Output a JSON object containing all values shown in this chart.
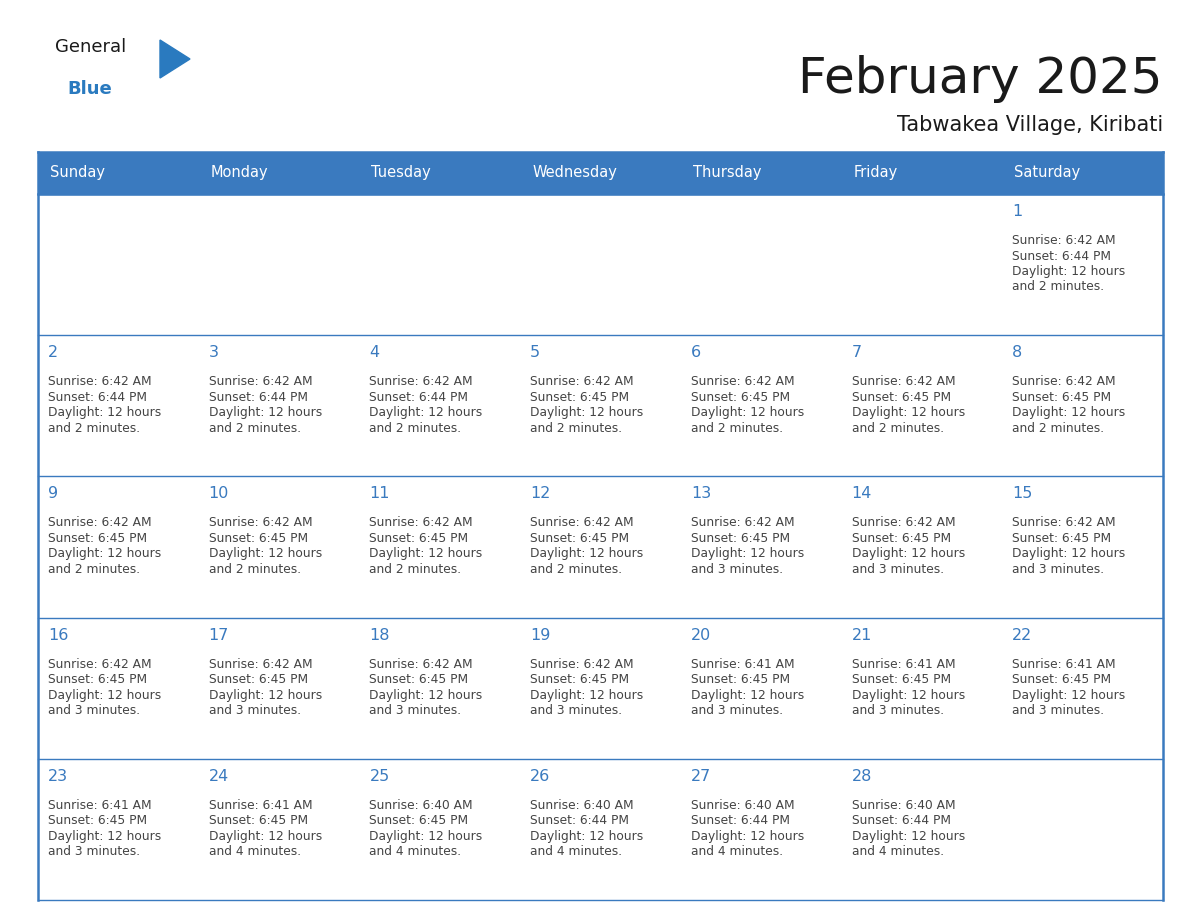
{
  "title": "February 2025",
  "subtitle": "Tabwakea Village, Kiribati",
  "header_bg_color": "#3a7abf",
  "header_text_color": "#ffffff",
  "day_names": [
    "Sunday",
    "Monday",
    "Tuesday",
    "Wednesday",
    "Thursday",
    "Friday",
    "Saturday"
  ],
  "grid_line_color": "#3a7abf",
  "bg_color": "#ffffff",
  "date_color": "#3a7abf",
  "info_color": "#444444",
  "title_color": "#1a1a1a",
  "subtitle_color": "#1a1a1a",
  "logo_general_color": "#1a1a1a",
  "logo_blue_color": "#2a7abf",
  "weeks": [
    [
      null,
      null,
      null,
      null,
      null,
      null,
      1
    ],
    [
      2,
      3,
      4,
      5,
      6,
      7,
      8
    ],
    [
      9,
      10,
      11,
      12,
      13,
      14,
      15
    ],
    [
      16,
      17,
      18,
      19,
      20,
      21,
      22
    ],
    [
      23,
      24,
      25,
      26,
      27,
      28,
      null
    ]
  ],
  "cell_data": {
    "1": {
      "sunrise": "6:42 AM",
      "sunset": "6:44 PM",
      "daylight": "12 hours and 2 minutes."
    },
    "2": {
      "sunrise": "6:42 AM",
      "sunset": "6:44 PM",
      "daylight": "12 hours and 2 minutes."
    },
    "3": {
      "sunrise": "6:42 AM",
      "sunset": "6:44 PM",
      "daylight": "12 hours and 2 minutes."
    },
    "4": {
      "sunrise": "6:42 AM",
      "sunset": "6:44 PM",
      "daylight": "12 hours and 2 minutes."
    },
    "5": {
      "sunrise": "6:42 AM",
      "sunset": "6:45 PM",
      "daylight": "12 hours and 2 minutes."
    },
    "6": {
      "sunrise": "6:42 AM",
      "sunset": "6:45 PM",
      "daylight": "12 hours and 2 minutes."
    },
    "7": {
      "sunrise": "6:42 AM",
      "sunset": "6:45 PM",
      "daylight": "12 hours and 2 minutes."
    },
    "8": {
      "sunrise": "6:42 AM",
      "sunset": "6:45 PM",
      "daylight": "12 hours and 2 minutes."
    },
    "9": {
      "sunrise": "6:42 AM",
      "sunset": "6:45 PM",
      "daylight": "12 hours and 2 minutes."
    },
    "10": {
      "sunrise": "6:42 AM",
      "sunset": "6:45 PM",
      "daylight": "12 hours and 2 minutes."
    },
    "11": {
      "sunrise": "6:42 AM",
      "sunset": "6:45 PM",
      "daylight": "12 hours and 2 minutes."
    },
    "12": {
      "sunrise": "6:42 AM",
      "sunset": "6:45 PM",
      "daylight": "12 hours and 2 minutes."
    },
    "13": {
      "sunrise": "6:42 AM",
      "sunset": "6:45 PM",
      "daylight": "12 hours and 3 minutes."
    },
    "14": {
      "sunrise": "6:42 AM",
      "sunset": "6:45 PM",
      "daylight": "12 hours and 3 minutes."
    },
    "15": {
      "sunrise": "6:42 AM",
      "sunset": "6:45 PM",
      "daylight": "12 hours and 3 minutes."
    },
    "16": {
      "sunrise": "6:42 AM",
      "sunset": "6:45 PM",
      "daylight": "12 hours and 3 minutes."
    },
    "17": {
      "sunrise": "6:42 AM",
      "sunset": "6:45 PM",
      "daylight": "12 hours and 3 minutes."
    },
    "18": {
      "sunrise": "6:42 AM",
      "sunset": "6:45 PM",
      "daylight": "12 hours and 3 minutes."
    },
    "19": {
      "sunrise": "6:42 AM",
      "sunset": "6:45 PM",
      "daylight": "12 hours and 3 minutes."
    },
    "20": {
      "sunrise": "6:41 AM",
      "sunset": "6:45 PM",
      "daylight": "12 hours and 3 minutes."
    },
    "21": {
      "sunrise": "6:41 AM",
      "sunset": "6:45 PM",
      "daylight": "12 hours and 3 minutes."
    },
    "22": {
      "sunrise": "6:41 AM",
      "sunset": "6:45 PM",
      "daylight": "12 hours and 3 minutes."
    },
    "23": {
      "sunrise": "6:41 AM",
      "sunset": "6:45 PM",
      "daylight": "12 hours and 3 minutes."
    },
    "24": {
      "sunrise": "6:41 AM",
      "sunset": "6:45 PM",
      "daylight": "12 hours and 4 minutes."
    },
    "25": {
      "sunrise": "6:40 AM",
      "sunset": "6:45 PM",
      "daylight": "12 hours and 4 minutes."
    },
    "26": {
      "sunrise": "6:40 AM",
      "sunset": "6:44 PM",
      "daylight": "12 hours and 4 minutes."
    },
    "27": {
      "sunrise": "6:40 AM",
      "sunset": "6:44 PM",
      "daylight": "12 hours and 4 minutes."
    },
    "28": {
      "sunrise": "6:40 AM",
      "sunset": "6:44 PM",
      "daylight": "12 hours and 4 minutes."
    }
  },
  "fig_width": 11.88,
  "fig_height": 9.18,
  "dpi": 100
}
